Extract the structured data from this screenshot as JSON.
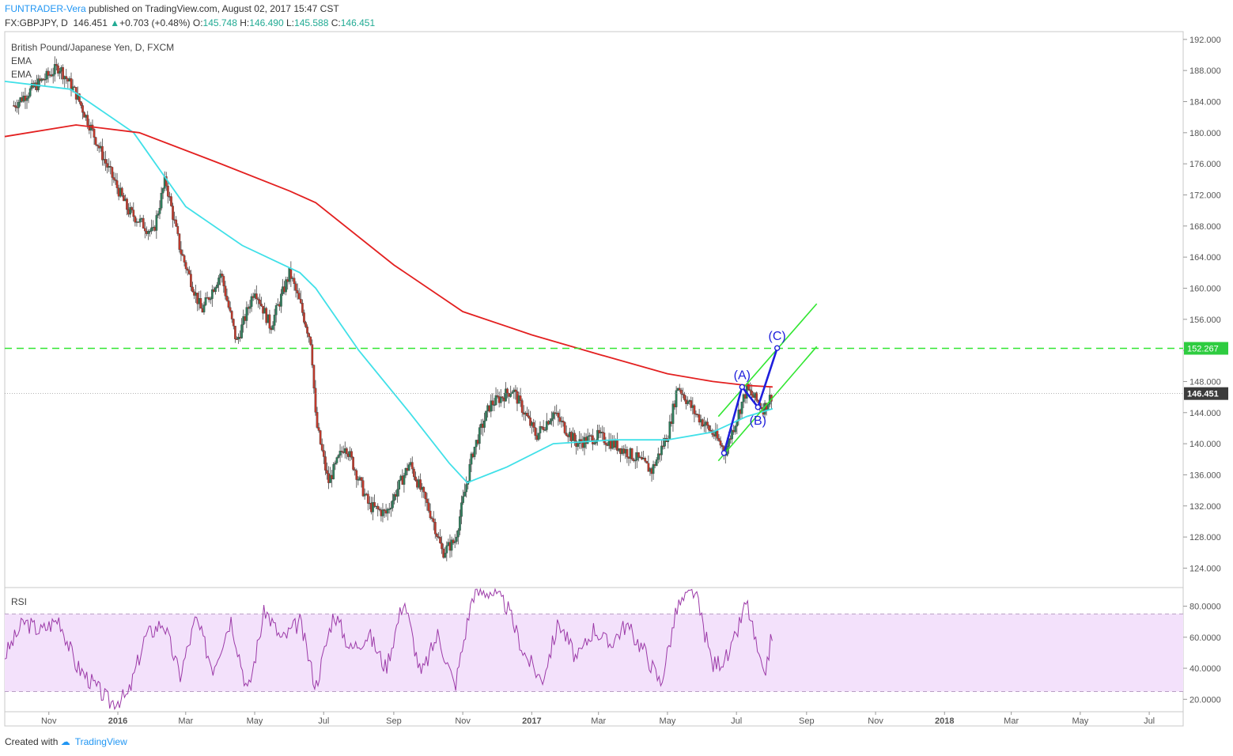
{
  "header": {
    "author": "FUNTRADER-Vera",
    "published": " published on TradingView.com, August 02, 2017 15:47 CST",
    "symbol": "FX:GBPJPY, D",
    "price": "146.451",
    "change": "+0.703 (+0.48%)",
    "o_label": "O:",
    "o_value": "145.748",
    "h_label": "H:",
    "h_value": "146.490",
    "l_label": "L:",
    "l_value": "145.588",
    "c_label": "C:",
    "c_value": "146.451"
  },
  "legend": {
    "instrument": "British Pound/Japanese Yen, D, FXCM",
    "ema1": "EMA",
    "ema2": "EMA",
    "rsi": "RSI"
  },
  "footer": {
    "created_with": "Created with",
    "brand": "TradingView"
  },
  "colors": {
    "candle_up": "#2e7d5b",
    "candle_down": "#c0392b",
    "ema_fast": "#40e0e8",
    "ema_slow": "#e32020",
    "channel": "#32e632",
    "wave": "#1f1fdc",
    "rsi_line": "#9c3aa8",
    "rsi_band": "#f3e1fb",
    "last_price_bg": "#3b3b3b",
    "level_bg": "#2ecc40"
  },
  "chart_data": [
    {
      "type": "candlestick",
      "series": [
        {
          "name": "GBPJPY",
          "x": [
            "2015-10-01",
            "2015-10-20",
            "2015-11-10",
            "2015-11-25",
            "2015-12-10",
            "2015-12-20",
            "2016-01-10",
            "2016-02-01",
            "2016-02-12",
            "2016-02-25",
            "2016-03-15",
            "2016-04-01",
            "2016-04-15",
            "2016-05-01",
            "2016-05-15",
            "2016-06-01",
            "2016-06-10",
            "2016-06-20",
            "2016-06-24",
            "2016-07-05",
            "2016-07-20",
            "2016-08-10",
            "2016-08-25",
            "2016-09-15",
            "2016-10-05",
            "2016-10-14",
            "2016-10-25",
            "2016-11-10",
            "2016-11-25",
            "2016-12-15",
            "2017-01-05",
            "2017-01-20",
            "2017-02-10",
            "2017-03-01",
            "2017-03-20",
            "2017-04-05",
            "2017-04-17",
            "2017-05-02",
            "2017-05-10",
            "2017-05-25",
            "2017-06-12",
            "2017-06-21",
            "2017-07-10",
            "2017-07-25",
            "2017-08-02"
          ],
          "close": [
            183.5,
            186.0,
            188.5,
            185.0,
            180.0,
            176.5,
            170.0,
            167.0,
            174.0,
            165.0,
            157.0,
            162.0,
            153.0,
            160.0,
            155.0,
            162.0,
            158.0,
            153.0,
            143.0,
            135.0,
            140.0,
            132.0,
            131.0,
            137.5,
            130.5,
            126.0,
            127.5,
            139.0,
            145.0,
            147.0,
            141.0,
            144.0,
            140.0,
            141.0,
            139.5,
            138.0,
            136.5,
            141.5,
            147.5,
            144.0,
            141.0,
            139.0,
            147.0,
            144.5,
            146.451
          ]
        }
      ],
      "ylim": [
        121.5,
        193.0
      ],
      "y_ticks": [
        "124.000",
        "128.000",
        "132.000",
        "136.000",
        "140.000",
        "144.000",
        "148.000",
        "152.000",
        "156.000",
        "160.000",
        "164.000",
        "168.000",
        "172.000",
        "176.000",
        "180.000",
        "184.000",
        "188.000",
        "192.000"
      ],
      "x_ticks": [
        "Nov",
        "2016",
        "Mar",
        "May",
        "Jul",
        "Sep",
        "Nov",
        "2017",
        "Mar",
        "May",
        "Jul",
        "Sep",
        "Nov",
        "2018",
        "Mar",
        "May",
        "Jul"
      ],
      "xlim": [
        "2015-09-23",
        "2018-07-31"
      ]
    },
    {
      "type": "line",
      "series": [
        {
          "name": "EMA",
          "x": [
            "2015-09-23",
            "2015-11-20",
            "2016-01-15",
            "2016-03-01",
            "2016-04-20",
            "2016-06-10",
            "2016-06-24",
            "2016-08-01",
            "2016-09-15",
            "2016-10-20",
            "2016-11-05",
            "2016-12-10",
            "2017-01-20",
            "2017-03-15",
            "2017-05-01",
            "2017-06-10",
            "2017-07-10",
            "2017-08-02"
          ],
          "values": [
            186.6,
            185.6,
            180.0,
            170.5,
            165.5,
            162.0,
            160.0,
            152.0,
            144.0,
            137.5,
            135.0,
            137.0,
            140.0,
            140.5,
            140.5,
            141.5,
            143.5,
            144.5
          ]
        },
        {
          "name": "EMA",
          "x": [
            "2015-09-23",
            "2015-11-25",
            "2016-01-20",
            "2016-04-01",
            "2016-06-01",
            "2016-06-24",
            "2016-09-01",
            "2016-11-01",
            "2017-01-01",
            "2017-03-01",
            "2017-05-01",
            "2017-06-10",
            "2017-07-10",
            "2017-08-02"
          ],
          "values": [
            179.5,
            181.0,
            180.0,
            176.0,
            172.5,
            171.0,
            163.0,
            157.0,
            154.0,
            151.5,
            149.0,
            148.0,
            147.5,
            147.3
          ]
        }
      ]
    },
    {
      "type": "annotations",
      "horizontal_level": {
        "value": 152.267,
        "label": "152.267"
      },
      "last_price": {
        "value": 146.451,
        "label": "146.451"
      },
      "wave_points": [
        {
          "label": "",
          "x": "2017-06-20",
          "y": 138.8
        },
        {
          "label": "(A)",
          "x": "2017-07-06",
          "y": 147.3
        },
        {
          "label": "(B)",
          "x": "2017-07-20",
          "y": 144.7
        },
        {
          "label": "(C)",
          "x": "2017-08-06",
          "y": 152.3
        }
      ],
      "channel": [
        {
          "x1": "2017-06-15",
          "y1": 137.8,
          "x2": "2017-09-10",
          "y2": 152.5
        },
        {
          "x1": "2017-06-15",
          "y1": 143.5,
          "x2": "2017-09-10",
          "y2": 158.0
        }
      ]
    },
    {
      "type": "line",
      "series": [
        {
          "name": "RSI",
          "x": [
            "2015-09-23",
            "2015-10-10",
            "2015-10-25",
            "2015-11-10",
            "2015-11-25",
            "2015-12-10",
            "2015-12-25",
            "2016-01-10",
            "2016-01-25",
            "2016-02-10",
            "2016-02-25",
            "2016-03-10",
            "2016-03-25",
            "2016-04-10",
            "2016-04-25",
            "2016-05-10",
            "2016-05-25",
            "2016-06-10",
            "2016-06-24",
            "2016-07-10",
            "2016-07-25",
            "2016-08-10",
            "2016-08-25",
            "2016-09-10",
            "2016-09-25",
            "2016-10-10",
            "2016-10-25",
            "2016-11-10",
            "2016-11-25",
            "2016-12-10",
            "2016-12-25",
            "2017-01-10",
            "2017-01-25",
            "2017-02-10",
            "2017-02-25",
            "2017-03-10",
            "2017-03-25",
            "2017-04-10",
            "2017-04-25",
            "2017-05-10",
            "2017-05-25",
            "2017-06-10",
            "2017-06-25",
            "2017-07-10",
            "2017-07-25",
            "2017-08-02"
          ],
          "values": [
            48,
            70,
            64,
            72,
            42,
            30,
            18,
            22,
            60,
            70,
            35,
            72,
            40,
            72,
            24,
            78,
            58,
            70,
            28,
            76,
            52,
            62,
            40,
            85,
            35,
            62,
            28,
            88,
            90,
            80,
            50,
            32,
            70,
            45,
            66,
            55,
            68,
            52,
            30,
            80,
            90,
            42,
            48,
            83,
            32,
            64
          ]
        }
      ],
      "ylim": [
        12,
        92
      ],
      "band": [
        25,
        75
      ],
      "y_ticks": [
        "20.0000",
        "40.0000",
        "60.0000",
        "80.0000"
      ]
    }
  ]
}
